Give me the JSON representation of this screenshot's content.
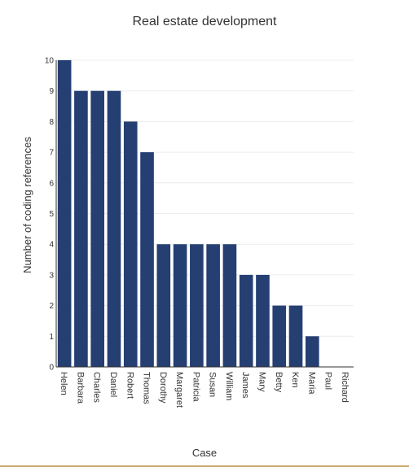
{
  "chart_data": {
    "type": "bar",
    "title": "Real estate development",
    "xlabel": "Case",
    "ylabel": "Number of coding references",
    "ylim": [
      0,
      10
    ],
    "yticks": [
      0,
      1,
      2,
      3,
      4,
      5,
      6,
      7,
      8,
      9,
      10
    ],
    "grid": true,
    "bar_color": "#253f73",
    "categories": [
      "Helen",
      "Barbara",
      "Charles",
      "Daniel",
      "Robert",
      "Thomas",
      "Dorothy",
      "Margaret",
      "Patricia",
      "Susan",
      "William",
      "James",
      "Mary",
      "Betty",
      "Ken",
      "Maria",
      "Paul",
      "Richard"
    ],
    "values": [
      10,
      9,
      9,
      9,
      8,
      7,
      4,
      4,
      4,
      4,
      4,
      3,
      3,
      2,
      2,
      1,
      0,
      0
    ]
  }
}
